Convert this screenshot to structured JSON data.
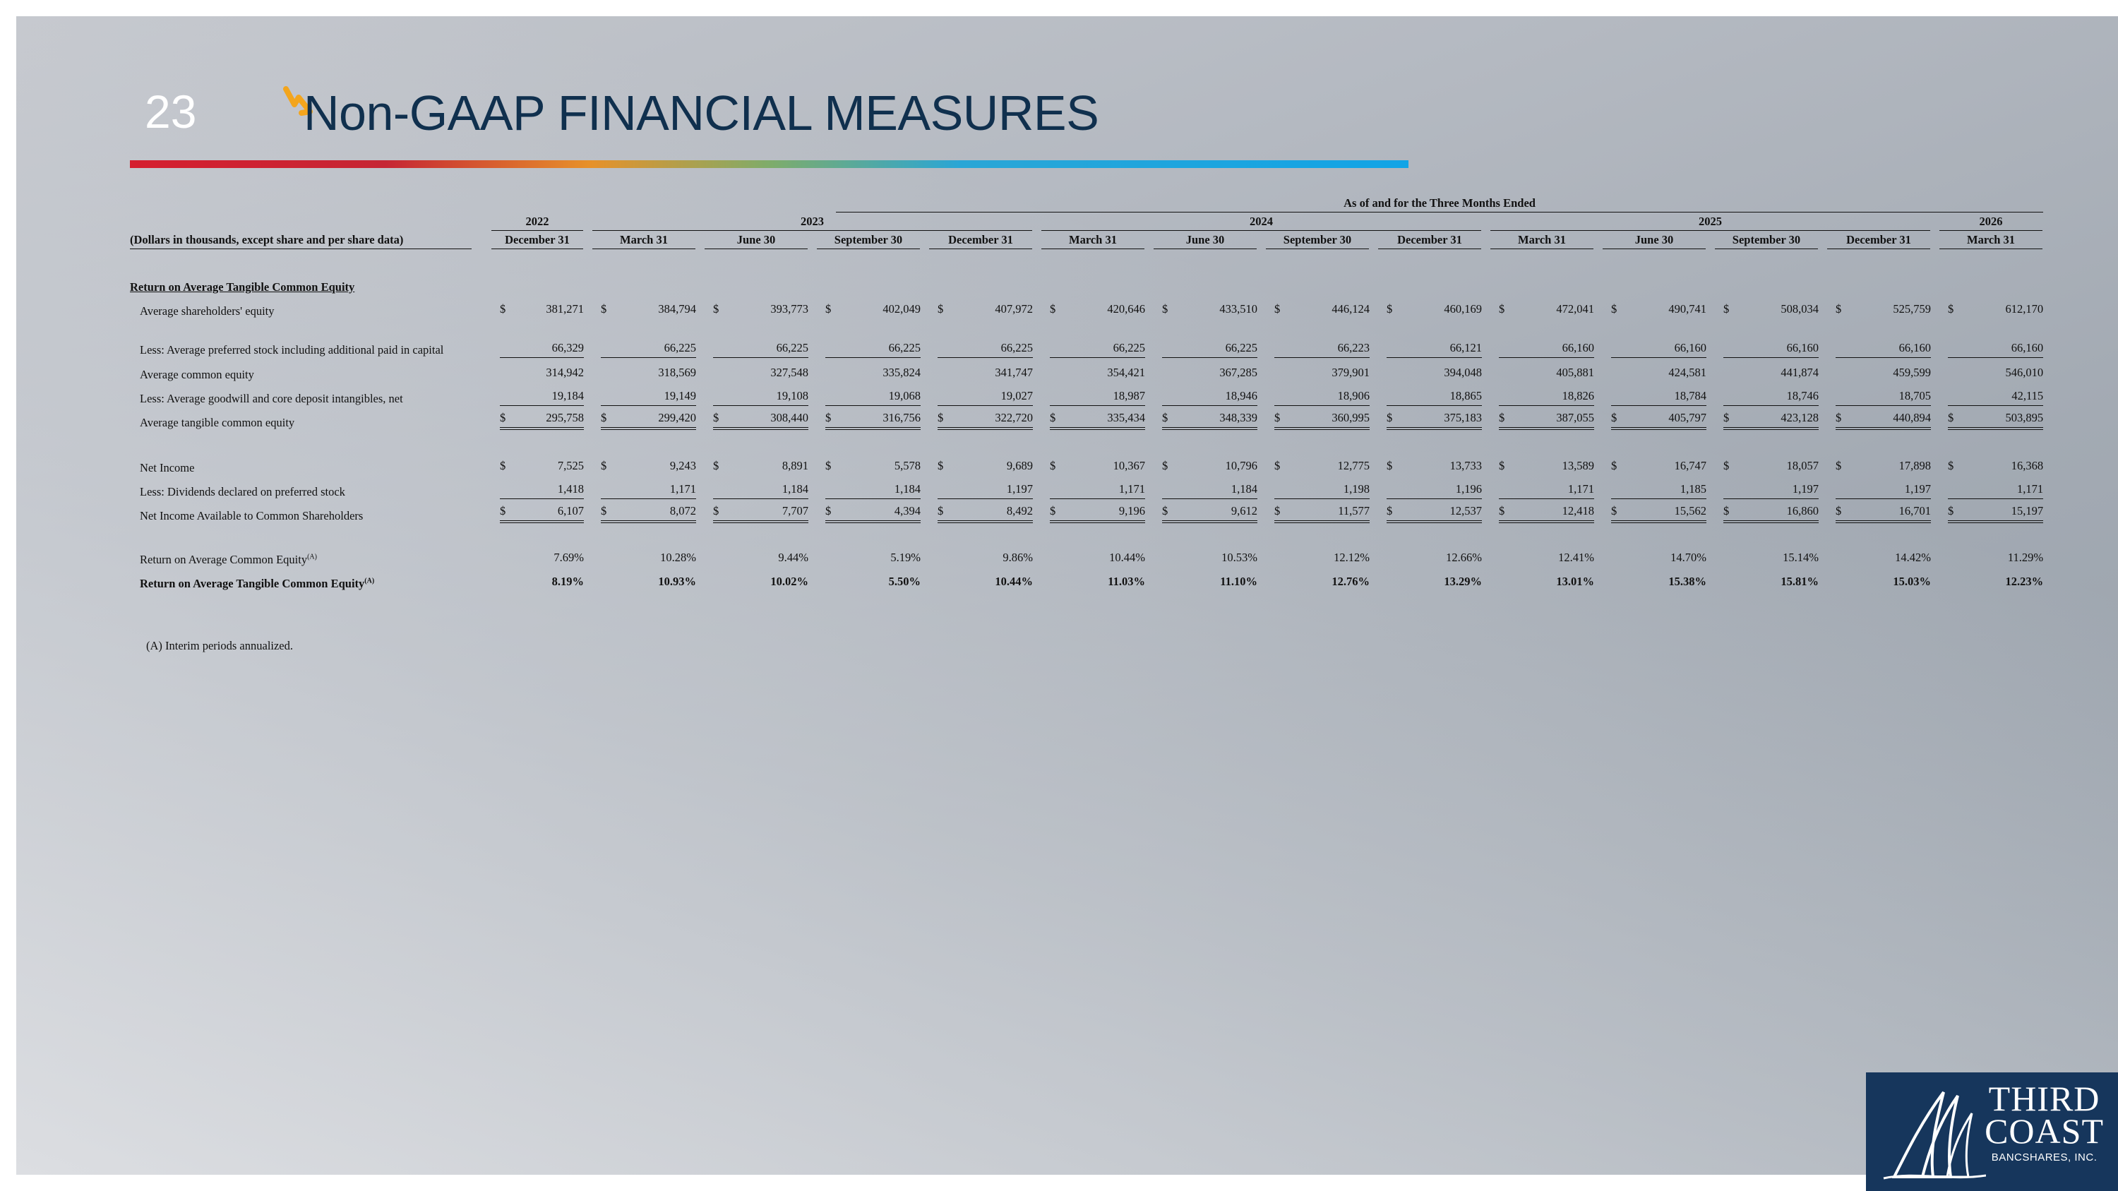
{
  "slide": {
    "number": "23",
    "title": "Non-GAAP FINANCIAL MEASURES",
    "accent_colors": {
      "title": "#10304e",
      "arrow": "#f3a51d",
      "bar_start": "#d51f2f",
      "bar_end": "#12a4e6",
      "logo_bg": "#16365c"
    }
  },
  "table": {
    "super_header": "As of and for the Three Months Ended",
    "years": [
      {
        "label": "2022",
        "span": 1
      },
      {
        "label": "2023",
        "span": 4
      },
      {
        "label": "2024",
        "span": 4
      },
      {
        "label": "2025",
        "span": 4
      },
      {
        "label": "2026",
        "span": 1
      }
    ],
    "label_header": "(Dollars in thousands, except share and per share data)",
    "periods": [
      "December 31",
      "March 31",
      "June 30",
      "September 30",
      "December 31",
      "March 31",
      "June 30",
      "September 30",
      "December 31",
      "March 31",
      "June 30",
      "September 30",
      "December 31",
      "March 31"
    ],
    "section_title": "Return on Average Tangible Common Equity",
    "rows": {
      "avg_sh_equity": {
        "label": "Average shareholders' equity",
        "dollar": true,
        "values": [
          "381,271",
          "384,794",
          "393,773",
          "402,049",
          "407,972",
          "420,646",
          "433,510",
          "446,124",
          "460,169",
          "472,041",
          "490,741",
          "508,034",
          "525,759",
          "612,170"
        ]
      },
      "less_pref": {
        "label": "Less: Average preferred stock including additional paid in capital",
        "values": [
          "66,329",
          "66,225",
          "66,225",
          "66,225",
          "66,225",
          "66,225",
          "66,225",
          "66,223",
          "66,121",
          "66,160",
          "66,160",
          "66,160",
          "66,160",
          "66,160"
        ]
      },
      "avg_common": {
        "label": "Average common equity",
        "values": [
          "314,942",
          "318,569",
          "327,548",
          "335,824",
          "341,747",
          "354,421",
          "367,285",
          "379,901",
          "394,048",
          "405,881",
          "424,581",
          "441,874",
          "459,599",
          "546,010"
        ]
      },
      "less_goodwill": {
        "label": "Less: Average goodwill and core deposit intangibles, net",
        "values": [
          "19,184",
          "19,149",
          "19,108",
          "19,068",
          "19,027",
          "18,987",
          "18,946",
          "18,906",
          "18,865",
          "18,826",
          "18,784",
          "18,746",
          "18,705",
          "42,115"
        ]
      },
      "avg_tangible": {
        "label": "Average tangible common equity",
        "dollar": true,
        "values": [
          "295,758",
          "299,420",
          "308,440",
          "316,756",
          "322,720",
          "335,434",
          "348,339",
          "360,995",
          "375,183",
          "387,055",
          "405,797",
          "423,128",
          "440,894",
          "503,895"
        ]
      },
      "net_income": {
        "label": "Net Income",
        "dollar": true,
        "values": [
          "7,525",
          "9,243",
          "8,891",
          "5,578",
          "9,689",
          "10,367",
          "10,796",
          "12,775",
          "13,733",
          "13,589",
          "16,747",
          "18,057",
          "17,898",
          "16,368"
        ]
      },
      "less_div": {
        "label": "Less: Dividends declared on preferred stock",
        "values": [
          "1,418",
          "1,171",
          "1,184",
          "1,184",
          "1,197",
          "1,171",
          "1,184",
          "1,198",
          "1,196",
          "1,171",
          "1,185",
          "1,197",
          "1,197",
          "1,171"
        ]
      },
      "ni_common": {
        "label": "Net Income Available to Common Shareholders",
        "dollar": true,
        "values": [
          "6,107",
          "8,072",
          "7,707",
          "4,394",
          "8,492",
          "9,196",
          "9,612",
          "11,577",
          "12,537",
          "12,418",
          "15,562",
          "16,860",
          "16,701",
          "15,197"
        ]
      },
      "roace": {
        "label": "Return on Average Common Equity",
        "sup": "(A)",
        "values": [
          "7.69%",
          "10.28%",
          "9.44%",
          "5.19%",
          "9.86%",
          "10.44%",
          "10.53%",
          "12.12%",
          "12.66%",
          "12.41%",
          "14.70%",
          "15.14%",
          "14.42%",
          "11.29%"
        ]
      },
      "rotce": {
        "label": "Return on Average Tangible Common Equity",
        "sup": "(A)",
        "values": [
          "8.19%",
          "10.93%",
          "10.02%",
          "5.50%",
          "10.44%",
          "11.03%",
          "11.10%",
          "12.76%",
          "13.29%",
          "13.01%",
          "15.38%",
          "15.81%",
          "15.03%",
          "12.23%"
        ]
      }
    },
    "dollar_sign": "$"
  },
  "footnote": "(A)  Interim periods annualized.",
  "logo": {
    "line1": "THIRD",
    "line2": "COAST",
    "line3": "BANCSHARES, INC."
  }
}
